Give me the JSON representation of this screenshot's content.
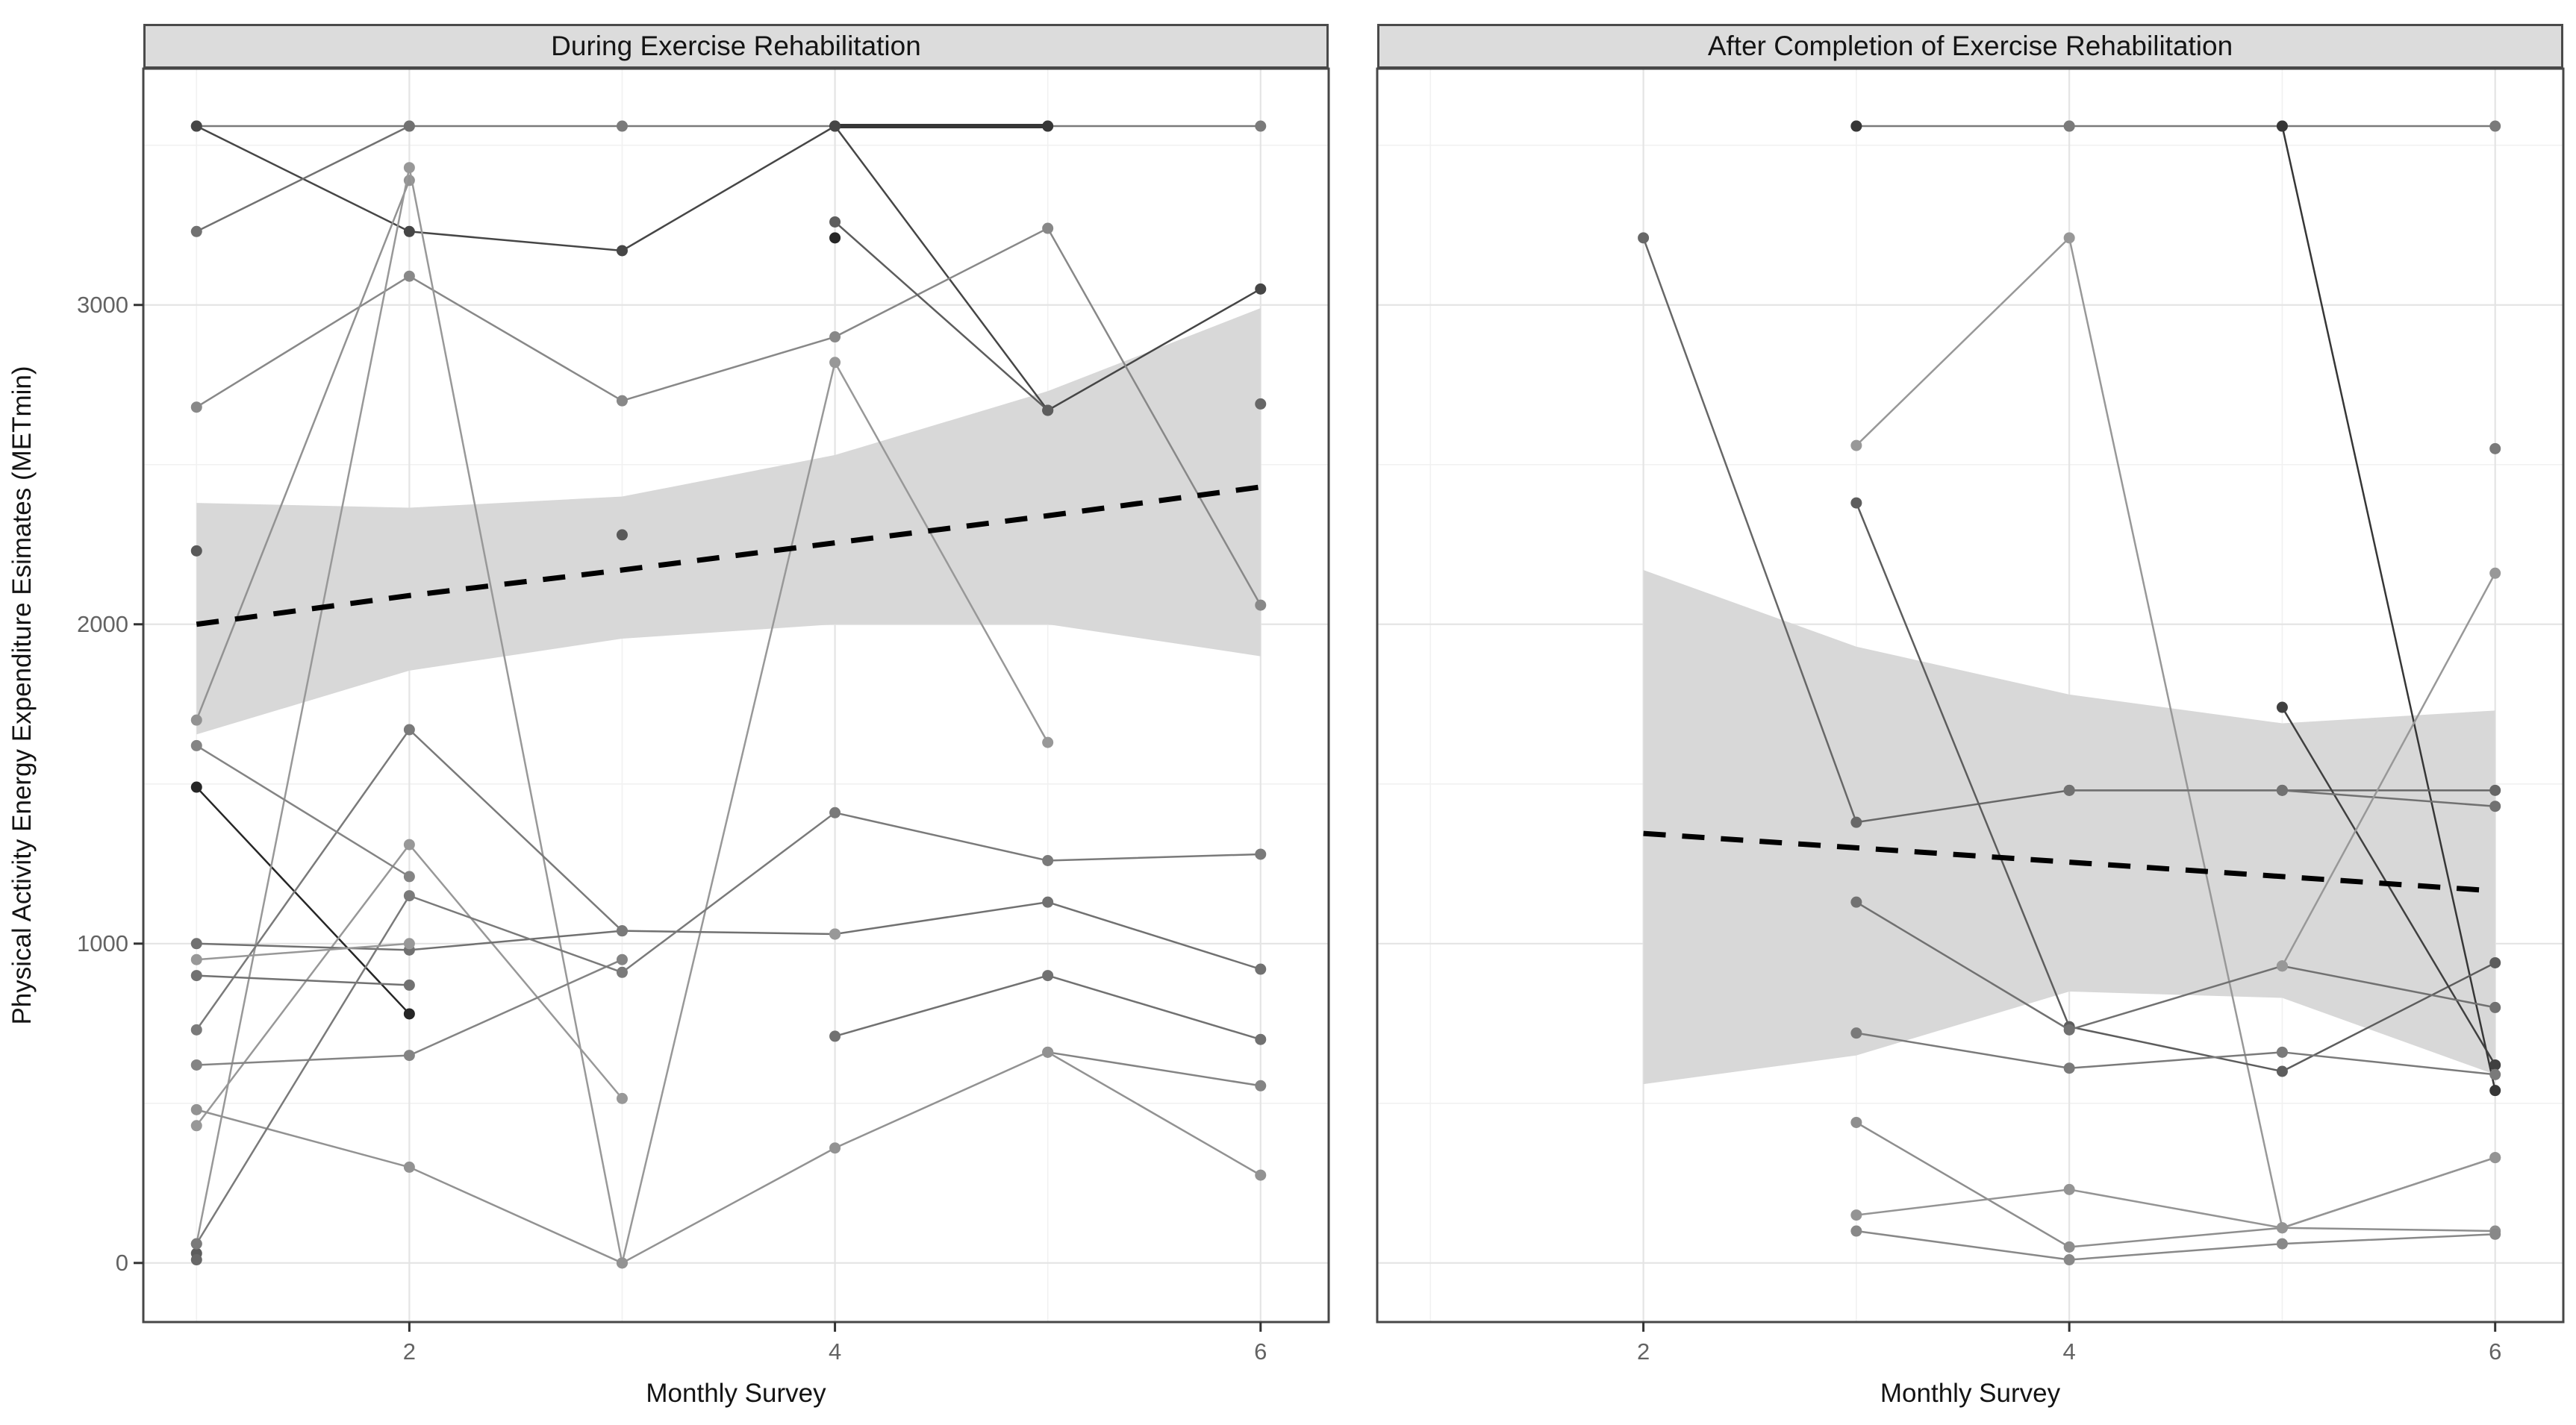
{
  "figure": {
    "y_axis_title": "Physical Activity Energy Expenditure Esimates (METmin)",
    "x_axis_title": "Monthly Survey"
  },
  "colors": {
    "background": "#ffffff",
    "strip_bg": "#dcdcdc",
    "strip_border": "#4a4a4a",
    "panel_border": "#474747",
    "grid_major": "#e4e4e4",
    "grid_minor": "#f1f1f1",
    "ribbon": "#d8d8d8",
    "trend": "#000000",
    "tick_mark": "#333333",
    "tick_label": "#636363",
    "axis_title": "#141414"
  },
  "chart_data": [
    {
      "type": "line",
      "title": "During Exercise Rehabilitation",
      "xlabel": "Monthly Survey",
      "ylabel": "Physical Activity Energy Expenditure Esimates (METmin)",
      "x_ticks": [
        2,
        4,
        6
      ],
      "x_minor": [
        1,
        3,
        5
      ],
      "y_ticks": [
        0,
        1000,
        2000,
        3000
      ],
      "y_minor": [
        500,
        1500,
        2500,
        3500
      ],
      "xlim": [
        0.75,
        6.32
      ],
      "ylim": [
        -185,
        3740
      ],
      "grid": true,
      "legend": "none",
      "months": [
        1,
        2,
        3,
        4,
        5,
        6
      ],
      "series": [
        {
          "name": "s1",
          "shade": 0.45,
          "values": [
            3560,
            3560,
            3560,
            3560,
            3560,
            3560
          ]
        },
        {
          "name": "s2",
          "shade": 0.8,
          "thick": true,
          "values": [
            null,
            null,
            null,
            3560,
            3560,
            null
          ]
        },
        {
          "name": "s3",
          "shade": 0.72,
          "values": [
            3560,
            3230,
            3170,
            3560,
            2670,
            3050
          ]
        },
        {
          "name": "s4",
          "shade": 0.5,
          "values": [
            3230,
            3560,
            null,
            null,
            null,
            null
          ]
        },
        {
          "name": "s5",
          "shade": 0.38,
          "values": [
            2680,
            3090,
            2700,
            2900,
            3240,
            2060
          ]
        },
        {
          "name": "s6",
          "shade": 0.33,
          "values": [
            1700,
            3390,
            null,
            null,
            null,
            null
          ]
        },
        {
          "name": "s7",
          "shade": 0.88,
          "values": [
            1490,
            780,
            null,
            3210,
            null,
            null
          ]
        },
        {
          "name": "s8",
          "shade": 0.6,
          "values": [
            30,
            null,
            null,
            3260,
            2670,
            null
          ]
        },
        {
          "name": "s9",
          "shade": 0.55,
          "values": [
            10,
            null,
            null,
            null,
            null,
            2690
          ]
        },
        {
          "name": "s10",
          "shade": 0.3,
          "values": [
            60,
            3430,
            0,
            2820,
            1630,
            null
          ]
        },
        {
          "name": "s11",
          "shade": 0.3,
          "values": [
            430,
            1310,
            515,
            null,
            null,
            null
          ]
        },
        {
          "name": "s12",
          "shade": 0.5,
          "values": [
            1000,
            980,
            1040,
            1030,
            1130,
            920
          ]
        },
        {
          "name": "s13",
          "shade": 0.45,
          "values": [
            730,
            1670,
            1040,
            null,
            null,
            null
          ]
        },
        {
          "name": "s14",
          "shade": 0.5,
          "values": [
            900,
            870,
            null,
            710,
            900,
            700
          ]
        },
        {
          "name": "s15",
          "shade": 0.4,
          "values": [
            620,
            650,
            950,
            null,
            660,
            555
          ]
        },
        {
          "name": "s16",
          "shade": 0.33,
          "values": [
            480,
            300,
            0,
            360,
            660,
            275
          ]
        },
        {
          "name": "s17",
          "shade": 0.45,
          "values": [
            60,
            1150,
            910,
            1410,
            1260,
            1280
          ]
        },
        {
          "name": "s18",
          "shade": 0.4,
          "values": [
            1620,
            1210,
            null,
            null,
            null,
            null
          ]
        },
        {
          "name": "s19",
          "shade": 0.62,
          "values": [
            2230,
            null,
            2280,
            null,
            null,
            null
          ]
        },
        {
          "name": "s20",
          "shade": 0.3,
          "values": [
            950,
            1000,
            null,
            1030,
            null,
            null
          ]
        }
      ],
      "trend": {
        "style": "dashed",
        "x": [
          1,
          2,
          3,
          4,
          5,
          6
        ],
        "y": [
          2000,
          2090,
          2170,
          2255,
          2340,
          2430
        ]
      },
      "ribbon": {
        "x": [
          1,
          2,
          3,
          4,
          5,
          6
        ],
        "lo": [
          1655,
          1855,
          1955,
          2000,
          2000,
          1900
        ],
        "hi": [
          2380,
          2365,
          2400,
          2530,
          2730,
          2990
        ]
      }
    },
    {
      "type": "line",
      "title": "After Completion of Exercise Rehabilitation",
      "xlabel": "Monthly Survey",
      "ylabel": "Physical Activity Energy Expenditure Esimates (METmin)",
      "x_ticks": [
        2,
        4,
        6
      ],
      "x_minor": [
        1,
        3,
        5
      ],
      "y_ticks": [
        0,
        1000,
        2000,
        3000
      ],
      "y_minor": [
        500,
        1500,
        2500,
        3500
      ],
      "xlim": [
        0.75,
        6.32
      ],
      "ylim": [
        -185,
        3740
      ],
      "grid": true,
      "legend": "none",
      "months": [
        1,
        2,
        3,
        4,
        5,
        6
      ],
      "series": [
        {
          "name": "r1",
          "shade": 0.45,
          "values": [
            null,
            null,
            3560,
            3560,
            3560,
            3560
          ]
        },
        {
          "name": "r2",
          "shade": 0.8,
          "values": [
            null,
            null,
            3560,
            null,
            3560,
            540
          ]
        },
        {
          "name": "r3",
          "shade": 0.55,
          "values": [
            null,
            3210,
            1380,
            1480,
            1480,
            1480
          ]
        },
        {
          "name": "r4",
          "shade": 0.3,
          "values": [
            null,
            null,
            2560,
            3210,
            110,
            330
          ]
        },
        {
          "name": "r5",
          "shade": 0.6,
          "values": [
            null,
            null,
            2380,
            740,
            600,
            940
          ]
        },
        {
          "name": "r6",
          "shade": 0.75,
          "values": [
            null,
            null,
            null,
            null,
            1740,
            620
          ]
        },
        {
          "name": "r7",
          "shade": 0.5,
          "values": [
            null,
            null,
            1130,
            730,
            930,
            800
          ]
        },
        {
          "name": "r8",
          "shade": 0.45,
          "values": [
            null,
            null,
            720,
            610,
            660,
            590
          ]
        },
        {
          "name": "r9",
          "shade": 0.35,
          "values": [
            null,
            null,
            440,
            50,
            110,
            100
          ]
        },
        {
          "name": "r10",
          "shade": 0.32,
          "values": [
            null,
            null,
            150,
            230,
            110,
            330
          ]
        },
        {
          "name": "r11",
          "shade": 0.38,
          "values": [
            null,
            null,
            100,
            10,
            60,
            90
          ]
        },
        {
          "name": "r12",
          "shade": 0.5,
          "values": [
            null,
            null,
            null,
            1480,
            1480,
            1430
          ]
        },
        {
          "name": "r13",
          "shade": 0.3,
          "values": [
            null,
            null,
            null,
            null,
            930,
            2160
          ]
        },
        {
          "name": "r14",
          "shade": 0.45,
          "values": [
            null,
            null,
            null,
            3560,
            null,
            2550
          ]
        }
      ],
      "trend": {
        "style": "dashed",
        "x": [
          2,
          3,
          4,
          5,
          6
        ],
        "y": [
          1345,
          1300,
          1255,
          1210,
          1165
        ]
      },
      "ribbon": {
        "x": [
          2,
          3,
          4,
          5,
          6
        ],
        "lo": [
          560,
          650,
          850,
          830,
          590
        ],
        "hi": [
          2170,
          1930,
          1780,
          1690,
          1730
        ]
      }
    }
  ]
}
